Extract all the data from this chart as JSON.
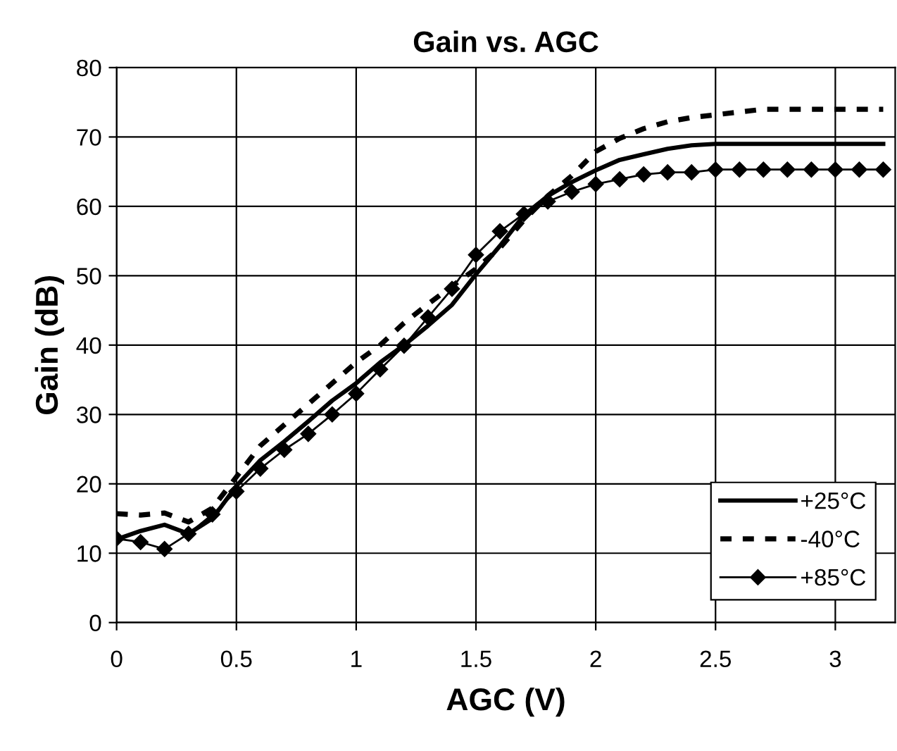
{
  "chart_data": {
    "type": "line",
    "title": "Gain vs. AGC",
    "xlabel": "AGC (V)",
    "ylabel": "Gain (dB)",
    "x": [
      0,
      0.1,
      0.2,
      0.3,
      0.4,
      0.5,
      0.6,
      0.7,
      0.8,
      0.9,
      1.0,
      1.1,
      1.2,
      1.3,
      1.4,
      1.5,
      1.6,
      1.7,
      1.8,
      1.9,
      2.0,
      2.1,
      2.2,
      2.3,
      2.4,
      2.5,
      2.6,
      2.7,
      2.8,
      2.9,
      3.0,
      3.1,
      3.2
    ],
    "series": [
      {
        "name": "+25°C",
        "color": "#000000",
        "line_style": "solid",
        "marker": "none",
        "values": [
          12,
          13.2,
          14.1,
          12.8,
          15,
          19.7,
          23.4,
          26.1,
          29,
          32,
          34.5,
          37.5,
          40,
          42.8,
          45.8,
          50.2,
          54.3,
          58.7,
          61.5,
          63.5,
          65.2,
          66.7,
          67.5,
          68.3,
          68.8,
          69,
          69,
          69,
          69,
          69,
          69,
          69,
          69
        ]
      },
      {
        "name": "-40°C",
        "color": "#000000",
        "line_style": "dashed",
        "marker": "none",
        "values": [
          15.7,
          15.5,
          15.8,
          14.5,
          16.5,
          21,
          25.5,
          28.5,
          31.5,
          34.5,
          37.5,
          40,
          43.2,
          45.9,
          48.5,
          51,
          54,
          58,
          61.5,
          64.4,
          67.9,
          69.8,
          71.2,
          72.2,
          72.8,
          73.2,
          73.6,
          74,
          74,
          74,
          74,
          74,
          74
        ]
      },
      {
        "name": "+85°C",
        "color": "#000000",
        "line_style": "solid",
        "marker": "diamond",
        "values": [
          12.1,
          11.6,
          10.6,
          12.8,
          15.6,
          18.9,
          22.2,
          24.9,
          27.2,
          30,
          33,
          36.5,
          39.9,
          44.0,
          48.1,
          53.0,
          56.4,
          58.9,
          60.7,
          62.1,
          63.2,
          63.9,
          64.6,
          64.9,
          64.9,
          65.3,
          65.3,
          65.3,
          65.3,
          65.3,
          65.3,
          65.3,
          65.3
        ]
      }
    ],
    "xlim": [
      0,
      3.25
    ],
    "xticks": [
      0,
      0.5,
      1,
      1.5,
      2,
      2.5,
      3
    ],
    "ylim": [
      0,
      80
    ],
    "yticks": [
      0,
      10,
      20,
      30,
      40,
      50,
      60,
      70,
      80
    ],
    "grid": true,
    "legend": "bottom right"
  }
}
